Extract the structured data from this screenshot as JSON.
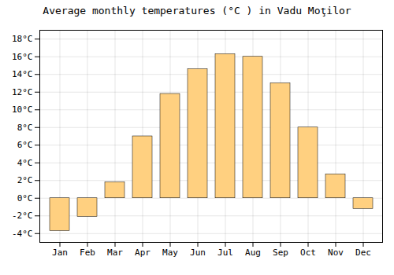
{
  "chart_data": {
    "type": "bar",
    "title": "Average monthly temperatures (°C ) in Vadu Moţilor",
    "categories": [
      "Jan",
      "Feb",
      "Mar",
      "Apr",
      "May",
      "Jun",
      "Jul",
      "Aug",
      "Sep",
      "Oct",
      "Nov",
      "Dec"
    ],
    "values": [
      -3.7,
      -2.1,
      1.8,
      7.0,
      11.8,
      14.6,
      16.3,
      16.0,
      13.0,
      8.0,
      2.7,
      -1.2
    ],
    "color": "#FFD080",
    "ylim": [
      -5,
      19
    ],
    "yticks": [
      {
        "value": -4,
        "label": "-4°C"
      },
      {
        "value": -2,
        "label": "-2°C"
      },
      {
        "value": 0,
        "label": "0°C"
      },
      {
        "value": 2,
        "label": "2°C"
      },
      {
        "value": 4,
        "label": "4°C"
      },
      {
        "value": 6,
        "label": "6°C"
      },
      {
        "value": 8,
        "label": "8°C"
      },
      {
        "value": 10,
        "label": "10°C"
      },
      {
        "value": 12,
        "label": "12°C"
      },
      {
        "value": 14,
        "label": "14°C"
      },
      {
        "value": 16,
        "label": "16°C"
      },
      {
        "value": 18,
        "label": "18°C"
      }
    ],
    "grid": true
  }
}
